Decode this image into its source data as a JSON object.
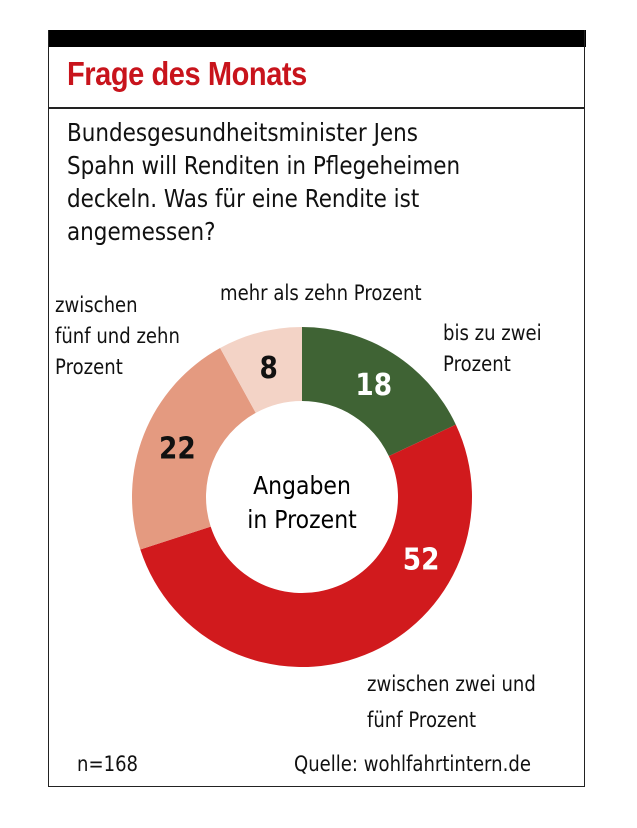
{
  "header": {
    "title": "Frage des Monats",
    "question_lines": [
      "Bundesgesundheitsminister Jens",
      "Spahn will Renditen in Pflegeheimen",
      "deckeln. Was für eine Rendite ist",
      "angemessen?"
    ]
  },
  "colors": {
    "title_red": "#c8141c",
    "frame": "#222222"
  },
  "chart_data": {
    "type": "pie",
    "donut": true,
    "title": "Frage des Monats",
    "center_label": [
      "Angaben",
      "in Prozent"
    ],
    "unit": "%",
    "slices": [
      {
        "label": "bis zu zwei Prozent",
        "label_lines": [
          "bis zu zwei",
          "Prozent"
        ],
        "value": 18,
        "color": "#3f6334",
        "value_color": "#ffffff"
      },
      {
        "label": "zwischen zwei und fünf Prozent",
        "label_lines": [
          "zwischen zwei und",
          "fünf Prozent"
        ],
        "value": 52,
        "color": "#d11a1d",
        "value_color": "#ffffff"
      },
      {
        "label": "zwischen fünf und zehn Prozent",
        "label_lines": [
          "zwischen",
          "fünf und zehn",
          "Prozent"
        ],
        "value": 22,
        "color": "#e49a80",
        "value_color": "#111111"
      },
      {
        "label": "mehr als zehn Prozent",
        "label_lines": [
          "mehr als zehn Prozent"
        ],
        "value": 8,
        "color": "#f3d3c6",
        "value_color": "#111111"
      }
    ],
    "start": "12 o'clock",
    "direction": "clockwise"
  },
  "footer": {
    "sample": "n=168",
    "source": "Quelle: wohlfahrtintern.de"
  }
}
